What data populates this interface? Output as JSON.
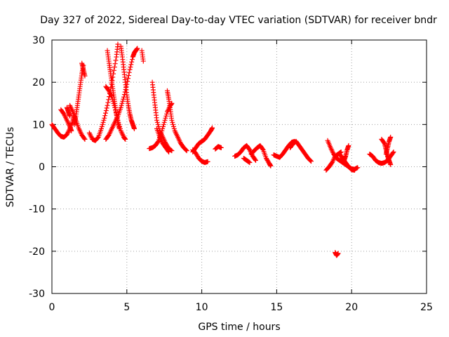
{
  "chart_data": {
    "type": "scatter",
    "title": "Day 327 of 2022, Sidereal Day-to-day VTEC variation (SDTVAR) for receiver bndr",
    "xlabel": "GPS time / hours",
    "ylabel": "SDTVAR / TECUs",
    "xlim": [
      0,
      25
    ],
    "ylim": [
      -30,
      30
    ],
    "xticks": [
      0,
      5,
      10,
      15,
      20,
      25
    ],
    "yticks": [
      -30,
      -20,
      -10,
      0,
      10,
      20,
      30
    ],
    "xtick_labels": [
      "0",
      "5",
      "10",
      "15",
      "20",
      "25"
    ],
    "ytick_labels": [
      "-30",
      "-20",
      "-10",
      "0",
      "10",
      "20",
      "30"
    ],
    "grid": true,
    "marker": "plus",
    "color": "#ff0000",
    "series": [
      {
        "points": [
          [
            0.0,
            10.0
          ],
          [
            0.2,
            9.0
          ],
          [
            0.4,
            8.0
          ],
          [
            0.6,
            7.2
          ],
          [
            0.8,
            7.0
          ],
          [
            1.0,
            7.6
          ],
          [
            1.2,
            9.0
          ],
          [
            1.4,
            11.0
          ],
          [
            1.5,
            12.5
          ]
        ]
      },
      {
        "points": [
          [
            0.6,
            13.5
          ],
          [
            0.8,
            12.5
          ],
          [
            1.0,
            11.0
          ],
          [
            1.2,
            9.5
          ],
          [
            1.3,
            8.5
          ]
        ]
      },
      {
        "points": [
          [
            1.0,
            14.0
          ],
          [
            1.1,
            13.0
          ],
          [
            1.2,
            12.0
          ]
        ]
      },
      {
        "points": [
          [
            1.2,
            14.5
          ],
          [
            1.4,
            13.0
          ],
          [
            1.6,
            11.0
          ],
          [
            1.8,
            9.0
          ],
          [
            2.0,
            7.5
          ],
          [
            2.2,
            6.5
          ]
        ]
      },
      {
        "points": [
          [
            1.5,
            10.0
          ],
          [
            1.6,
            12.0
          ],
          [
            1.7,
            14.5
          ],
          [
            1.8,
            17.0
          ],
          [
            1.9,
            19.5
          ],
          [
            2.0,
            22.0
          ],
          [
            2.1,
            24.0
          ]
        ]
      },
      {
        "points": [
          [
            2.0,
            24.5
          ],
          [
            2.1,
            23.0
          ],
          [
            2.2,
            21.5
          ]
        ]
      },
      {
        "points": [
          [
            2.5,
            8.0
          ],
          [
            2.7,
            6.5
          ],
          [
            2.9,
            6.2
          ],
          [
            3.1,
            7.0
          ],
          [
            3.3,
            9.0
          ],
          [
            3.5,
            11.5
          ],
          [
            3.7,
            14.5
          ],
          [
            3.9,
            18.0
          ],
          [
            4.1,
            22.0
          ],
          [
            4.3,
            26.0
          ],
          [
            4.4,
            29.0
          ]
        ]
      },
      {
        "points": [
          [
            3.7,
            27.5
          ],
          [
            3.8,
            25.0
          ],
          [
            3.9,
            22.5
          ],
          [
            4.0,
            20.0
          ],
          [
            4.1,
            17.5
          ],
          [
            4.2,
            15.0
          ],
          [
            4.3,
            12.5
          ],
          [
            4.4,
            10.5
          ],
          [
            4.5,
            9.0
          ]
        ]
      },
      {
        "points": [
          [
            3.6,
            19.0
          ],
          [
            3.8,
            18.0
          ],
          [
            4.0,
            16.5
          ],
          [
            4.2,
            14.0
          ],
          [
            4.4,
            11.0
          ],
          [
            4.6,
            8.5
          ],
          [
            4.8,
            7.0
          ],
          [
            4.9,
            6.5
          ]
        ]
      },
      {
        "points": [
          [
            3.6,
            6.5
          ],
          [
            3.8,
            7.5
          ],
          [
            4.0,
            9.0
          ],
          [
            4.2,
            10.5
          ],
          [
            4.4,
            12.0
          ],
          [
            4.6,
            14.0
          ],
          [
            4.8,
            16.5
          ],
          [
            5.0,
            19.5
          ],
          [
            5.2,
            23.0
          ],
          [
            5.4,
            26.0
          ],
          [
            5.5,
            27.0
          ],
          [
            5.6,
            27.5
          ],
          [
            5.7,
            28.0
          ]
        ]
      },
      {
        "points": [
          [
            4.6,
            28.5
          ],
          [
            4.7,
            26.0
          ],
          [
            4.8,
            23.0
          ],
          [
            4.9,
            20.0
          ],
          [
            5.0,
            17.0
          ],
          [
            5.1,
            14.5
          ],
          [
            5.2,
            12.5
          ],
          [
            5.3,
            11.0
          ],
          [
            5.4,
            10.0
          ],
          [
            5.5,
            9.0
          ]
        ]
      },
      {
        "points": [
          [
            6.0,
            27.5
          ],
          [
            6.1,
            25.0
          ]
        ]
      },
      {
        "points": [
          [
            6.5,
            4.3
          ],
          [
            6.7,
            4.5
          ],
          [
            6.9,
            5.0
          ],
          [
            7.1,
            6.0
          ],
          [
            7.3,
            8.0
          ],
          [
            7.5,
            10.5
          ],
          [
            7.7,
            13.0
          ],
          [
            7.9,
            14.5
          ],
          [
            8.0,
            15.0
          ]
        ]
      },
      {
        "points": [
          [
            6.7,
            20.0
          ],
          [
            6.8,
            17.0
          ],
          [
            6.9,
            14.0
          ],
          [
            7.0,
            11.0
          ],
          [
            7.2,
            8.5
          ],
          [
            7.4,
            7.0
          ],
          [
            7.6,
            5.5
          ],
          [
            7.8,
            4.3
          ],
          [
            8.0,
            3.8
          ]
        ]
      },
      {
        "points": [
          [
            7.7,
            18.0
          ],
          [
            7.8,
            16.0
          ],
          [
            7.9,
            13.5
          ],
          [
            8.0,
            11.0
          ],
          [
            8.2,
            8.5
          ],
          [
            8.4,
            7.0
          ],
          [
            8.6,
            5.5
          ],
          [
            8.8,
            4.5
          ],
          [
            9.0,
            3.8
          ]
        ]
      },
      {
        "points": [
          [
            7.0,
            9.0
          ],
          [
            7.2,
            7.0
          ],
          [
            7.4,
            5.5
          ],
          [
            7.6,
            4.5
          ],
          [
            7.8,
            3.5
          ]
        ]
      },
      {
        "points": [
          [
            9.4,
            4.0
          ],
          [
            9.6,
            3.2
          ],
          [
            9.8,
            2.0
          ],
          [
            10.0,
            1.3
          ],
          [
            10.2,
            1.0
          ],
          [
            10.4,
            1.2
          ]
        ]
      },
      {
        "points": [
          [
            9.4,
            3.5
          ],
          [
            9.6,
            4.5
          ],
          [
            9.8,
            5.5
          ],
          [
            10.0,
            6.0
          ],
          [
            10.2,
            6.5
          ],
          [
            10.4,
            7.5
          ],
          [
            10.6,
            8.5
          ],
          [
            10.7,
            9.2
          ]
        ]
      },
      {
        "points": [
          [
            10.9,
            4.2
          ],
          [
            11.1,
            4.8
          ],
          [
            11.3,
            4.5
          ]
        ]
      },
      {
        "points": [
          [
            12.2,
            2.5
          ],
          [
            12.4,
            2.8
          ],
          [
            12.6,
            3.5
          ],
          [
            12.8,
            4.5
          ],
          [
            13.0,
            5.0
          ],
          [
            13.2,
            4.0
          ],
          [
            13.4,
            2.5
          ],
          [
            13.6,
            1.5
          ]
        ]
      },
      {
        "points": [
          [
            12.8,
            2.0
          ],
          [
            13.0,
            1.5
          ],
          [
            13.2,
            1.0
          ]
        ]
      },
      {
        "points": [
          [
            13.3,
            3.0
          ],
          [
            13.5,
            3.8
          ],
          [
            13.7,
            4.5
          ],
          [
            13.9,
            5.0
          ],
          [
            14.1,
            4.0
          ],
          [
            14.3,
            2.0
          ],
          [
            14.5,
            0.8
          ],
          [
            14.6,
            0.2
          ]
        ]
      },
      {
        "points": [
          [
            14.8,
            2.8
          ],
          [
            15.0,
            2.5
          ],
          [
            15.2,
            2.2
          ],
          [
            15.4,
            3.0
          ],
          [
            15.6,
            4.0
          ],
          [
            15.8,
            5.0
          ],
          [
            16.0,
            5.8
          ],
          [
            16.2,
            6.0
          ]
        ]
      },
      {
        "points": [
          [
            15.9,
            4.5
          ],
          [
            16.1,
            5.5
          ],
          [
            16.3,
            6.0
          ],
          [
            16.5,
            5.0
          ],
          [
            16.7,
            4.0
          ],
          [
            16.9,
            3.0
          ],
          [
            17.1,
            2.0
          ],
          [
            17.3,
            1.3
          ]
        ]
      },
      {
        "points": [
          [
            18.4,
            6.2
          ],
          [
            18.6,
            4.5
          ],
          [
            18.8,
            3.0
          ],
          [
            19.0,
            2.0
          ],
          [
            19.2,
            1.5
          ],
          [
            19.4,
            1.0
          ],
          [
            19.6,
            0.5
          ],
          [
            19.8,
            0.0
          ],
          [
            20.0,
            -0.5
          ],
          [
            20.2,
            -0.6
          ],
          [
            20.4,
            -0.2
          ]
        ]
      },
      {
        "points": [
          [
            18.3,
            -0.8
          ],
          [
            18.5,
            0.0
          ],
          [
            18.7,
            1.0
          ],
          [
            18.9,
            2.5
          ],
          [
            19.1,
            3.0
          ],
          [
            19.3,
            3.5
          ]
        ]
      },
      {
        "points": [
          [
            19.2,
            3.0
          ],
          [
            19.4,
            2.0
          ],
          [
            19.6,
            1.0
          ],
          [
            19.8,
            0.0
          ],
          [
            20.0,
            -0.7
          ],
          [
            20.2,
            -0.8
          ]
        ]
      },
      {
        "points": [
          [
            19.5,
            1.5
          ],
          [
            19.6,
            2.5
          ],
          [
            19.7,
            4.0
          ],
          [
            19.8,
            5.0
          ]
        ]
      },
      {
        "points": [
          [
            18.9,
            -20.3
          ],
          [
            19.0,
            -21.0
          ],
          [
            19.1,
            -20.5
          ]
        ]
      },
      {
        "points": [
          [
            21.2,
            3.0
          ],
          [
            21.4,
            2.5
          ],
          [
            21.6,
            1.5
          ],
          [
            21.8,
            1.0
          ],
          [
            22.0,
            0.8
          ],
          [
            22.2,
            1.0
          ],
          [
            22.4,
            1.5
          ],
          [
            22.6,
            2.5
          ],
          [
            22.8,
            3.5
          ]
        ]
      },
      {
        "points": [
          [
            22.0,
            6.5
          ],
          [
            22.2,
            5.5
          ],
          [
            22.3,
            4.0
          ],
          [
            22.4,
            2.5
          ],
          [
            22.5,
            1.5
          ],
          [
            22.6,
            0.5
          ]
        ]
      },
      {
        "points": [
          [
            22.3,
            3.0
          ],
          [
            22.4,
            4.5
          ],
          [
            22.5,
            6.0
          ],
          [
            22.6,
            7.0
          ]
        ]
      }
    ]
  }
}
